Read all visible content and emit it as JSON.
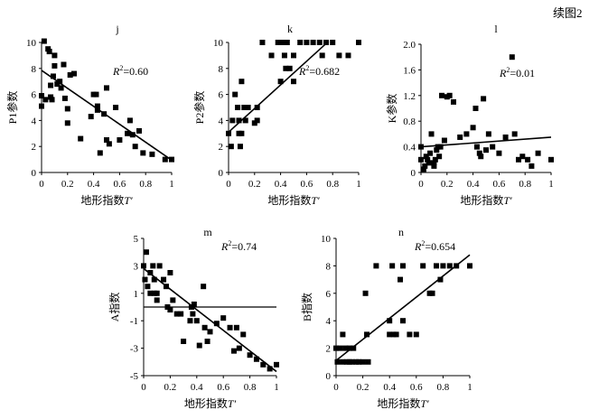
{
  "figure_label": "续图2",
  "chart_data": [
    {
      "panel": "j",
      "type": "scatter",
      "xlabel": "地形指数T′",
      "ylabel": "P1参数",
      "r2_label": "R²=0.60",
      "xlim": [
        0,
        1
      ],
      "ylim": [
        0,
        10
      ],
      "xticks": [
        "0",
        "0.2",
        "0.4",
        "0.6",
        "0.8",
        "1"
      ],
      "yticks": [
        "0",
        "2",
        "4",
        "6",
        "8",
        "10"
      ],
      "points": [
        [
          0.0,
          5.9
        ],
        [
          0.0,
          5.1
        ],
        [
          0.02,
          10.1
        ],
        [
          0.03,
          5.6
        ],
        [
          0.05,
          9.5
        ],
        [
          0.06,
          9.3
        ],
        [
          0.07,
          6.7
        ],
        [
          0.07,
          5.8
        ],
        [
          0.08,
          5.6
        ],
        [
          0.09,
          7.4
        ],
        [
          0.1,
          8.2
        ],
        [
          0.1,
          9.0
        ],
        [
          0.12,
          6.8
        ],
        [
          0.14,
          7.0
        ],
        [
          0.15,
          6.5
        ],
        [
          0.17,
          8.3
        ],
        [
          0.18,
          5.7
        ],
        [
          0.2,
          4.9
        ],
        [
          0.2,
          3.8
        ],
        [
          0.22,
          7.5
        ],
        [
          0.25,
          7.6
        ],
        [
          0.3,
          2.6
        ],
        [
          0.38,
          4.3
        ],
        [
          0.4,
          6.0
        ],
        [
          0.42,
          6.0
        ],
        [
          0.43,
          5.1
        ],
        [
          0.43,
          4.8
        ],
        [
          0.45,
          1.5
        ],
        [
          0.48,
          4.5
        ],
        [
          0.5,
          6.5
        ],
        [
          0.5,
          2.5
        ],
        [
          0.52,
          2.2
        ],
        [
          0.57,
          5.0
        ],
        [
          0.6,
          2.5
        ],
        [
          0.66,
          3.0
        ],
        [
          0.68,
          4.0
        ],
        [
          0.7,
          2.9
        ],
        [
          0.72,
          2.0
        ],
        [
          0.75,
          3.2
        ],
        [
          0.78,
          1.5
        ],
        [
          0.85,
          1.4
        ],
        [
          0.95,
          1.0
        ],
        [
          1.0,
          1.0
        ]
      ],
      "fit_line": [
        [
          0,
          7.85
        ],
        [
          1,
          0.95
        ]
      ]
    },
    {
      "panel": "k",
      "type": "scatter",
      "xlabel": "地形指数T′",
      "ylabel": "P2参数",
      "r2_label": "R²=0.682",
      "xlim": [
        0,
        1
      ],
      "ylim": [
        0,
        10
      ],
      "xticks": [
        "0",
        "0.2",
        "0.4",
        "0.6",
        "0.8",
        "1"
      ],
      "yticks": [
        "0",
        "2",
        "4",
        "6",
        "8",
        "10"
      ],
      "points": [
        [
          0.0,
          3.0
        ],
        [
          0.02,
          2.0
        ],
        [
          0.03,
          4.0
        ],
        [
          0.05,
          6.0
        ],
        [
          0.07,
          5.0
        ],
        [
          0.08,
          3.0
        ],
        [
          0.08,
          4.0
        ],
        [
          0.09,
          2.0
        ],
        [
          0.1,
          7.0
        ],
        [
          0.1,
          3.0
        ],
        [
          0.12,
          5.0
        ],
        [
          0.13,
          4.0
        ],
        [
          0.15,
          5.0
        ],
        [
          0.2,
          3.8
        ],
        [
          0.22,
          4.0
        ],
        [
          0.22,
          5.0
        ],
        [
          0.26,
          10.0
        ],
        [
          0.33,
          9.0
        ],
        [
          0.38,
          10.0
        ],
        [
          0.4,
          7.0
        ],
        [
          0.42,
          10.0
        ],
        [
          0.43,
          9.0
        ],
        [
          0.44,
          8.0
        ],
        [
          0.45,
          10.0
        ],
        [
          0.47,
          8.0
        ],
        [
          0.5,
          9.0
        ],
        [
          0.5,
          7.0
        ],
        [
          0.55,
          10.0
        ],
        [
          0.6,
          10.0
        ],
        [
          0.65,
          10.0
        ],
        [
          0.7,
          10.0
        ],
        [
          0.72,
          9.0
        ],
        [
          0.75,
          10.0
        ],
        [
          0.8,
          10.0
        ],
        [
          0.85,
          9.0
        ],
        [
          0.92,
          9.0
        ],
        [
          1.0,
          10.0
        ]
      ],
      "fit_line": [
        [
          0,
          3.1
        ],
        [
          0.77,
          10.1
        ]
      ]
    },
    {
      "panel": "l",
      "type": "scatter",
      "xlabel": "地形指数T′",
      "ylabel": "K参数",
      "r2_label": "R²=0.01",
      "xlim": [
        0,
        1
      ],
      "ylim": [
        0,
        2.0
      ],
      "xticks": [
        "0",
        "0.2",
        "0.4",
        "0.6",
        "0.8",
        "1"
      ],
      "yticks": [
        "0",
        "0.4",
        "0.8",
        "1.2",
        "1.6",
        "2.0"
      ],
      "points": [
        [
          0.0,
          0.2
        ],
        [
          0.0,
          0.4
        ],
        [
          0.02,
          0.05
        ],
        [
          0.03,
          0.1
        ],
        [
          0.04,
          0.25
        ],
        [
          0.05,
          0.2
        ],
        [
          0.06,
          0.15
        ],
        [
          0.07,
          0.3
        ],
        [
          0.08,
          0.6
        ],
        [
          0.1,
          0.1
        ],
        [
          0.1,
          0.15
        ],
        [
          0.11,
          0.2
        ],
        [
          0.12,
          0.35
        ],
        [
          0.13,
          0.4
        ],
        [
          0.14,
          0.25
        ],
        [
          0.15,
          0.4
        ],
        [
          0.16,
          1.2
        ],
        [
          0.18,
          0.5
        ],
        [
          0.2,
          1.18
        ],
        [
          0.22,
          1.2
        ],
        [
          0.25,
          1.1
        ],
        [
          0.3,
          0.55
        ],
        [
          0.35,
          0.6
        ],
        [
          0.4,
          0.7
        ],
        [
          0.42,
          1.0
        ],
        [
          0.43,
          0.4
        ],
        [
          0.45,
          0.3
        ],
        [
          0.46,
          0.25
        ],
        [
          0.48,
          1.15
        ],
        [
          0.5,
          0.35
        ],
        [
          0.52,
          0.6
        ],
        [
          0.55,
          0.4
        ],
        [
          0.6,
          0.3
        ],
        [
          0.65,
          0.55
        ],
        [
          0.7,
          1.8
        ],
        [
          0.72,
          0.6
        ],
        [
          0.75,
          0.2
        ],
        [
          0.78,
          0.25
        ],
        [
          0.82,
          0.2
        ],
        [
          0.85,
          0.1
        ],
        [
          0.9,
          0.3
        ],
        [
          1.0,
          0.2
        ]
      ],
      "fit_line": [
        [
          0,
          0.4
        ],
        [
          1,
          0.55
        ]
      ]
    },
    {
      "panel": "m",
      "type": "scatter",
      "xlabel": "地形指数T′",
      "ylabel": "A指数",
      "r2_label": "R²=0.74",
      "xlim": [
        0,
        1
      ],
      "ylim": [
        -5,
        5
      ],
      "xticks": [
        "0",
        "0.2",
        "0.4",
        "0.6",
        "0.8",
        "1"
      ],
      "yticks": [
        "-5",
        "-3",
        "-1",
        "1",
        "3",
        "5"
      ],
      "points": [
        [
          0.0,
          3.0
        ],
        [
          0.01,
          2.0
        ],
        [
          0.02,
          4.0
        ],
        [
          0.03,
          1.5
        ],
        [
          0.05,
          2.5
        ],
        [
          0.05,
          1.0
        ],
        [
          0.07,
          3.0
        ],
        [
          0.08,
          2.0
        ],
        [
          0.08,
          1.0
        ],
        [
          0.1,
          0.5
        ],
        [
          0.1,
          1.0
        ],
        [
          0.12,
          3.0
        ],
        [
          0.15,
          2.0
        ],
        [
          0.17,
          1.5
        ],
        [
          0.18,
          0.0
        ],
        [
          0.2,
          2.5
        ],
        [
          0.2,
          -0.2
        ],
        [
          0.22,
          0.5
        ],
        [
          0.25,
          -0.5
        ],
        [
          0.28,
          -0.5
        ],
        [
          0.3,
          -2.5
        ],
        [
          0.35,
          -1.0
        ],
        [
          0.36,
          0.0
        ],
        [
          0.37,
          -0.5
        ],
        [
          0.38,
          0.2
        ],
        [
          0.4,
          -1.0
        ],
        [
          0.42,
          -2.8
        ],
        [
          0.45,
          1.5
        ],
        [
          0.46,
          -1.5
        ],
        [
          0.48,
          -2.5
        ],
        [
          0.5,
          -1.8
        ],
        [
          0.55,
          -1.2
        ],
        [
          0.6,
          -0.8
        ],
        [
          0.65,
          -1.5
        ],
        [
          0.68,
          -3.2
        ],
        [
          0.7,
          -1.5
        ],
        [
          0.72,
          -3.0
        ],
        [
          0.75,
          -2.0
        ],
        [
          0.8,
          -3.5
        ],
        [
          0.85,
          -3.8
        ],
        [
          0.9,
          -4.2
        ],
        [
          0.95,
          -4.5
        ],
        [
          1.0,
          -4.2
        ]
      ],
      "fit_line": [
        [
          0,
          2.8
        ],
        [
          1,
          -4.7
        ]
      ]
    },
    {
      "panel": "n",
      "type": "scatter",
      "xlabel": "地形指数T′",
      "ylabel": "B指数",
      "r2_label": "R²=0.654",
      "xlim": [
        0,
        1
      ],
      "ylim": [
        0,
        10
      ],
      "xticks": [
        "0",
        "0.2",
        "0.4",
        "0.6",
        "0.8",
        "1"
      ],
      "yticks": [
        "0",
        "2",
        "4",
        "6",
        "8",
        "10"
      ],
      "points": [
        [
          0.0,
          2.0
        ],
        [
          0.01,
          1.0
        ],
        [
          0.03,
          2.0
        ],
        [
          0.05,
          1.0
        ],
        [
          0.05,
          3.0
        ],
        [
          0.07,
          2.0
        ],
        [
          0.08,
          1.0
        ],
        [
          0.1,
          1.0
        ],
        [
          0.1,
          2.0
        ],
        [
          0.12,
          1.0
        ],
        [
          0.13,
          2.0
        ],
        [
          0.15,
          1.0
        ],
        [
          0.17,
          1.0
        ],
        [
          0.2,
          1.0
        ],
        [
          0.22,
          6.0
        ],
        [
          0.23,
          3.0
        ],
        [
          0.24,
          1.0
        ],
        [
          0.3,
          8.0
        ],
        [
          0.4,
          4.0
        ],
        [
          0.4,
          3.0
        ],
        [
          0.42,
          8.0
        ],
        [
          0.43,
          3.0
        ],
        [
          0.45,
          3.0
        ],
        [
          0.48,
          7.0
        ],
        [
          0.5,
          4.0
        ],
        [
          0.5,
          8.0
        ],
        [
          0.55,
          3.0
        ],
        [
          0.6,
          3.0
        ],
        [
          0.65,
          8.0
        ],
        [
          0.7,
          6.0
        ],
        [
          0.72,
          6.0
        ],
        [
          0.75,
          8.0
        ],
        [
          0.78,
          7.0
        ],
        [
          0.8,
          8.0
        ],
        [
          0.85,
          8.0
        ],
        [
          0.9,
          8.0
        ],
        [
          1.0,
          8.0
        ]
      ],
      "fit_line": [
        [
          0,
          1.1
        ],
        [
          1,
          8.8
        ]
      ]
    }
  ]
}
